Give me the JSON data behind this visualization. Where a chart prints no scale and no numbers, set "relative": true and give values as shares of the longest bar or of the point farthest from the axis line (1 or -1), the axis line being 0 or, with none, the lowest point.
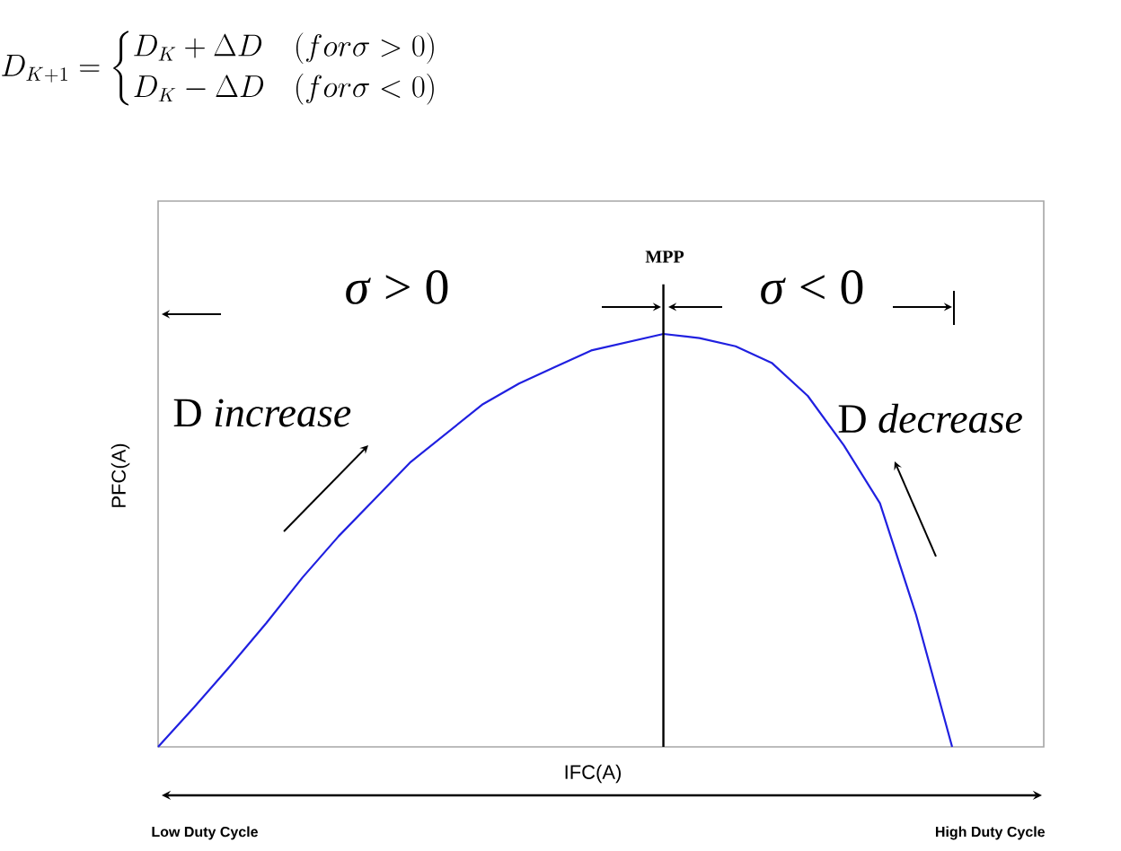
{
  "chart_data": {
    "type": "line",
    "relative": true,
    "categories": [
      null,
      null,
      null,
      null,
      null,
      null,
      null,
      null,
      null,
      null,
      null,
      null,
      null,
      null,
      null,
      null,
      null,
      null,
      null,
      null,
      null,
      null,
      null
    ],
    "values": [
      0,
      0.096,
      0.196,
      0.3,
      0.41,
      0.51,
      0.6,
      0.69,
      0.76,
      0.83,
      0.88,
      0.92,
      0.96,
      0.98,
      1,
      0.99,
      0.97,
      0.93,
      0.85,
      0.73,
      0.59,
      0.32,
      0
    ],
    "color": "#2020e0",
    "xlabel": "IFC(A)",
    "ylabel": "PFC(A)",
    "annotations": [
      "D_{K+1}=\\begin{cases}D_K+\\Delta D & \\left(for\\sigma>0\\right)\\\\ D_K-\\Delta D & \\left(for\\sigma<0\\right)\\end{cases}",
      "*σ* > 0",
      "*σ* < 0",
      "D *increase*",
      "D *decrease*",
      "**Low Duty Cycle**",
      "**High Duty Cycle**",
      "**MPP**"
    ]
  }
}
